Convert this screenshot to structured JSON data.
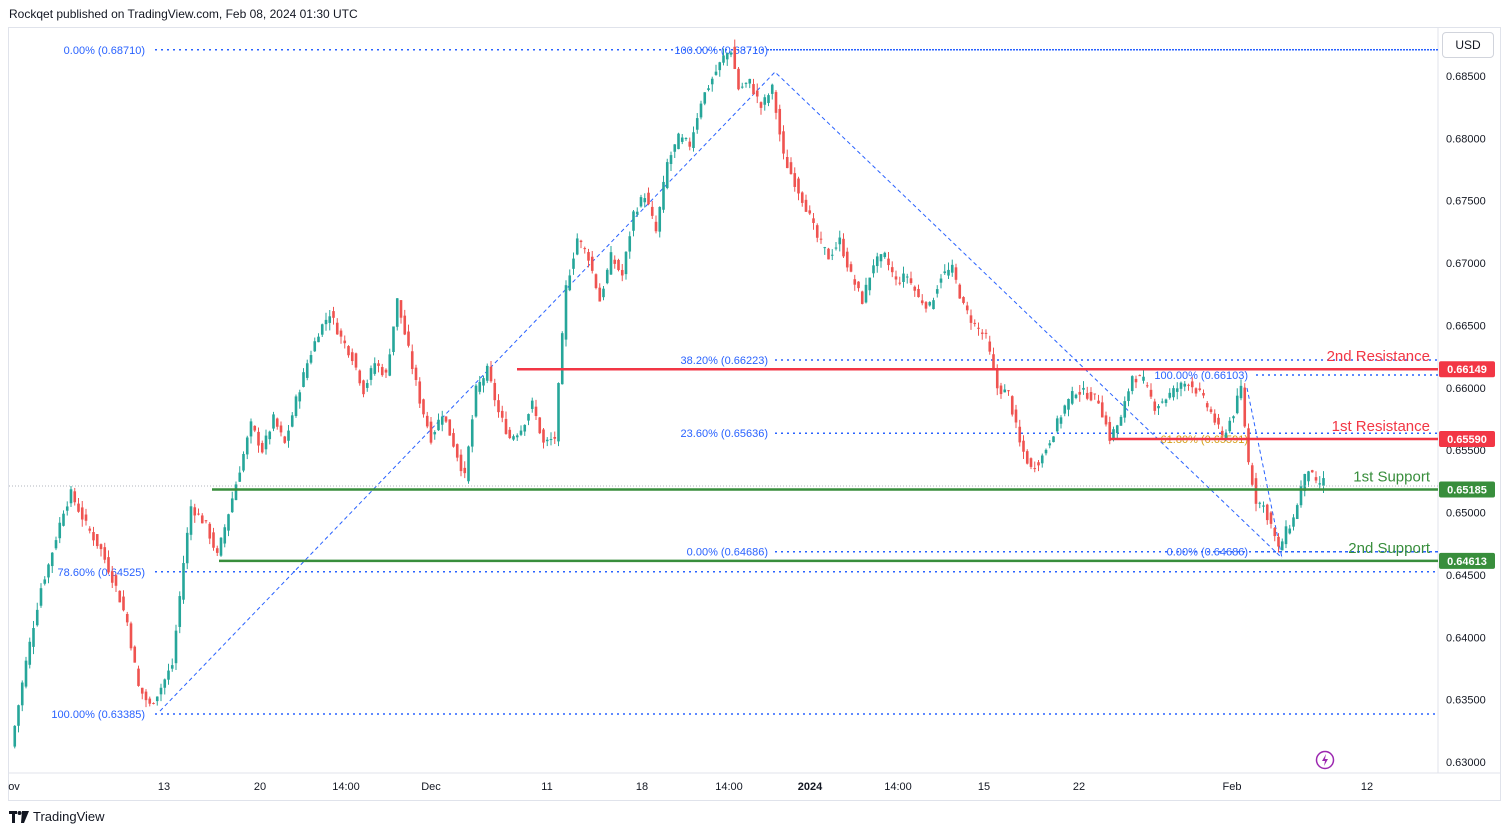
{
  "header": {
    "attribution": "Rockqet published on TradingView.com, Feb 08, 2024 01:30 UTC"
  },
  "footer": {
    "brand": "TradingView"
  },
  "currency_button": "USD",
  "colors": {
    "up": "#26a69a",
    "down": "#ef5350",
    "fib": "#2962ff",
    "fib_text": "#2962ff",
    "fib_gold": "#d4a017",
    "resistance": "#f23645",
    "support": "#388e3c"
  },
  "chart_data": {
    "type": "candlestick",
    "title": "",
    "ylim": [
      0.6287,
      0.6884
    ],
    "y_ticks": [
      "0.68500",
      "0.68000",
      "0.67500",
      "0.67000",
      "0.66500",
      "0.66000",
      "0.65500",
      "0.65000",
      "0.64500",
      "0.64000",
      "0.63500",
      "0.63000"
    ],
    "x_ticks": [
      "ov",
      "13",
      "20",
      "14:00",
      "Dec",
      "11",
      "18",
      "14:00",
      "2024",
      "14:00",
      "15",
      "22",
      "Feb",
      "12"
    ],
    "price_path": [
      {
        "i": 0,
        "p": 0.6312
      },
      {
        "i": 4,
        "p": 0.638
      },
      {
        "i": 8,
        "p": 0.644
      },
      {
        "i": 10,
        "p": 0.6458
      },
      {
        "i": 14,
        "p": 0.6502
      },
      {
        "i": 16,
        "p": 0.6515
      },
      {
        "i": 20,
        "p": 0.649
      },
      {
        "i": 24,
        "p": 0.647
      },
      {
        "i": 28,
        "p": 0.644
      },
      {
        "i": 31,
        "p": 0.6412
      },
      {
        "i": 34,
        "p": 0.636
      },
      {
        "i": 37,
        "p": 0.6345
      },
      {
        "i": 40,
        "p": 0.636
      },
      {
        "i": 43,
        "p": 0.6378
      },
      {
        "i": 46,
        "p": 0.646
      },
      {
        "i": 48,
        "p": 0.6505
      },
      {
        "i": 52,
        "p": 0.649
      },
      {
        "i": 55,
        "p": 0.6465
      },
      {
        "i": 58,
        "p": 0.65
      },
      {
        "i": 61,
        "p": 0.6535
      },
      {
        "i": 64,
        "p": 0.657
      },
      {
        "i": 67,
        "p": 0.655
      },
      {
        "i": 70,
        "p": 0.6575
      },
      {
        "i": 73,
        "p": 0.6555
      },
      {
        "i": 76,
        "p": 0.659
      },
      {
        "i": 79,
        "p": 0.662
      },
      {
        "i": 82,
        "p": 0.6645
      },
      {
        "i": 85,
        "p": 0.666
      },
      {
        "i": 88,
        "p": 0.664
      },
      {
        "i": 91,
        "p": 0.6625
      },
      {
        "i": 94,
        "p": 0.6598
      },
      {
        "i": 97,
        "p": 0.662
      },
      {
        "i": 100,
        "p": 0.661
      },
      {
        "i": 103,
        "p": 0.667
      },
      {
        "i": 106,
        "p": 0.663
      },
      {
        "i": 109,
        "p": 0.659
      },
      {
        "i": 112,
        "p": 0.656
      },
      {
        "i": 115,
        "p": 0.658
      },
      {
        "i": 118,
        "p": 0.6555
      },
      {
        "i": 121,
        "p": 0.6528
      },
      {
        "i": 124,
        "p": 0.6598
      },
      {
        "i": 127,
        "p": 0.6614
      },
      {
        "i": 130,
        "p": 0.658
      },
      {
        "i": 133,
        "p": 0.656
      },
      {
        "i": 136,
        "p": 0.6567
      },
      {
        "i": 139,
        "p": 0.6587
      },
      {
        "i": 142,
        "p": 0.6555
      },
      {
        "i": 145,
        "p": 0.656
      },
      {
        "i": 148,
        "p": 0.668
      },
      {
        "i": 151,
        "p": 0.672
      },
      {
        "i": 154,
        "p": 0.6705
      },
      {
        "i": 157,
        "p": 0.667
      },
      {
        "i": 160,
        "p": 0.6705
      },
      {
        "i": 163,
        "p": 0.669
      },
      {
        "i": 166,
        "p": 0.674
      },
      {
        "i": 169,
        "p": 0.6755
      },
      {
        "i": 172,
        "p": 0.6725
      },
      {
        "i": 175,
        "p": 0.678
      },
      {
        "i": 178,
        "p": 0.68
      },
      {
        "i": 181,
        "p": 0.6795
      },
      {
        "i": 184,
        "p": 0.683
      },
      {
        "i": 187,
        "p": 0.6848
      },
      {
        "i": 190,
        "p": 0.6865
      },
      {
        "i": 192,
        "p": 0.6871
      },
      {
        "i": 194,
        "p": 0.684
      },
      {
        "i": 197,
        "p": 0.6845
      },
      {
        "i": 200,
        "p": 0.6825
      },
      {
        "i": 203,
        "p": 0.684
      },
      {
        "i": 206,
        "p": 0.6785
      },
      {
        "i": 209,
        "p": 0.6765
      },
      {
        "i": 212,
        "p": 0.6745
      },
      {
        "i": 215,
        "p": 0.672
      },
      {
        "i": 218,
        "p": 0.6705
      },
      {
        "i": 221,
        "p": 0.6718
      },
      {
        "i": 224,
        "p": 0.669
      },
      {
        "i": 227,
        "p": 0.667
      },
      {
        "i": 230,
        "p": 0.67
      },
      {
        "i": 233,
        "p": 0.6705
      },
      {
        "i": 236,
        "p": 0.6685
      },
      {
        "i": 239,
        "p": 0.669
      },
      {
        "i": 242,
        "p": 0.6672
      },
      {
        "i": 245,
        "p": 0.6665
      },
      {
        "i": 248,
        "p": 0.669
      },
      {
        "i": 251,
        "p": 0.6695
      },
      {
        "i": 254,
        "p": 0.6665
      },
      {
        "i": 257,
        "p": 0.665
      },
      {
        "i": 260,
        "p": 0.664
      },
      {
        "i": 263,
        "p": 0.66
      },
      {
        "i": 266,
        "p": 0.6595
      },
      {
        "i": 269,
        "p": 0.6555
      },
      {
        "i": 272,
        "p": 0.6535
      },
      {
        "i": 275,
        "p": 0.6545
      },
      {
        "i": 278,
        "p": 0.6565
      },
      {
        "i": 281,
        "p": 0.6585
      },
      {
        "i": 284,
        "p": 0.6598
      },
      {
        "i": 287,
        "p": 0.6595
      },
      {
        "i": 290,
        "p": 0.659
      },
      {
        "i": 293,
        "p": 0.656
      },
      {
        "i": 296,
        "p": 0.6575
      },
      {
        "i": 299,
        "p": 0.661
      },
      {
        "i": 302,
        "p": 0.6605
      },
      {
        "i": 305,
        "p": 0.6585
      },
      {
        "i": 308,
        "p": 0.6592
      },
      {
        "i": 311,
        "p": 0.66
      },
      {
        "i": 314,
        "p": 0.6605
      },
      {
        "i": 317,
        "p": 0.6595
      },
      {
        "i": 320,
        "p": 0.658
      },
      {
        "i": 323,
        "p": 0.656
      },
      {
        "i": 326,
        "p": 0.658
      },
      {
        "i": 328,
        "p": 0.66
      },
      {
        "i": 330,
        "p": 0.654
      },
      {
        "i": 332,
        "p": 0.651
      },
      {
        "i": 334,
        "p": 0.6505
      },
      {
        "i": 336,
        "p": 0.649
      },
      {
        "i": 338,
        "p": 0.647
      },
      {
        "i": 340,
        "p": 0.6485
      },
      {
        "i": 342,
        "p": 0.6495
      },
      {
        "i": 344,
        "p": 0.652
      },
      {
        "i": 346,
        "p": 0.6535
      },
      {
        "i": 348,
        "p": 0.6522
      },
      {
        "i": 350,
        "p": 0.6525
      }
    ],
    "horizontal_levels": [
      {
        "name": "2nd Resistance",
        "value": 0.66149,
        "price_label": "0.66149",
        "color": "#f23645"
      },
      {
        "name": "1st Resistance",
        "value": 0.6559,
        "price_label": "0.65590",
        "color": "#f23645"
      },
      {
        "name": "1st Support",
        "value": 0.65185,
        "price_label": "0.65185",
        "color": "#388e3c"
      },
      {
        "name": "2nd Support",
        "value": 0.64613,
        "price_label": "0.64613",
        "color": "#388e3c"
      }
    ],
    "fib_levels": [
      {
        "label": "0.00% (0.68710)",
        "value": 0.6871
      },
      {
        "label": "100.00% (0.68710)",
        "value": 0.6871
      },
      {
        "label": "38.20% (0.66223)",
        "value": 0.66223
      },
      {
        "label": "23.60% (0.65636)",
        "value": 0.65636
      },
      {
        "label": "0.00% (0.64686)",
        "value": 0.64686
      },
      {
        "label": "78.60% (0.64525)",
        "value": 0.64525
      },
      {
        "label": "100.00% (0.63385)",
        "value": 0.63385
      },
      {
        "label": "100.00% (0.66103)",
        "value": 0.66103
      },
      {
        "label": "61.80% (0.65591)",
        "value": 0.65591
      },
      {
        "label": "0.00% (0.64686)",
        "value": 0.64686
      }
    ]
  }
}
